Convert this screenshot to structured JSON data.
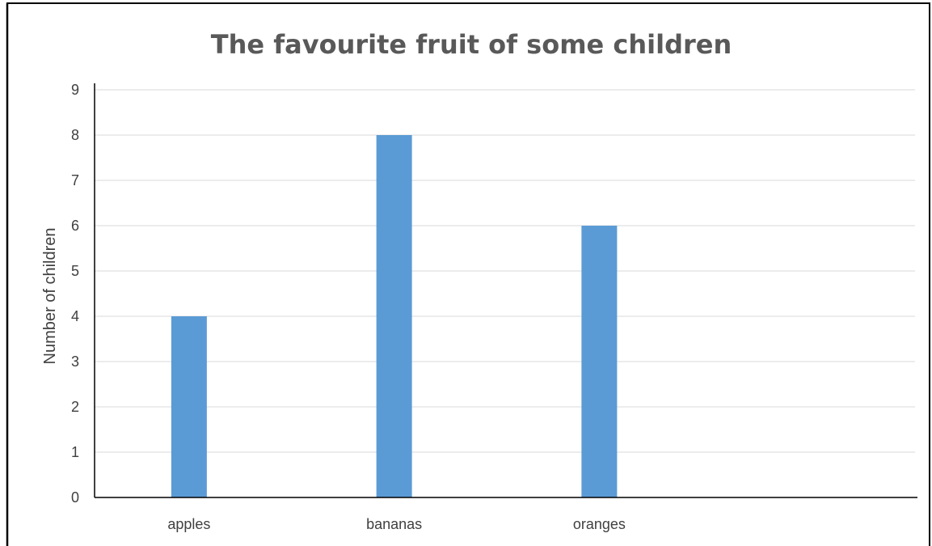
{
  "chart_data": {
    "type": "bar",
    "title": "The favourite fruit of some children",
    "xlabel": "",
    "ylabel": "Number of children",
    "categories": [
      "apples",
      "bananas",
      "oranges",
      ""
    ],
    "values": [
      4,
      8,
      6,
      null
    ],
    "ylim": [
      0,
      9
    ],
    "yticks": [
      "0",
      "1",
      "2",
      "3",
      "4",
      "5",
      "6",
      "7",
      "8",
      "9"
    ],
    "grid": true,
    "legend": "none",
    "colors": {
      "bar": "#5B9BD5",
      "grid": "#D9D9D9",
      "axis": "#000000",
      "text": "#404040",
      "title": "#595959"
    }
  }
}
